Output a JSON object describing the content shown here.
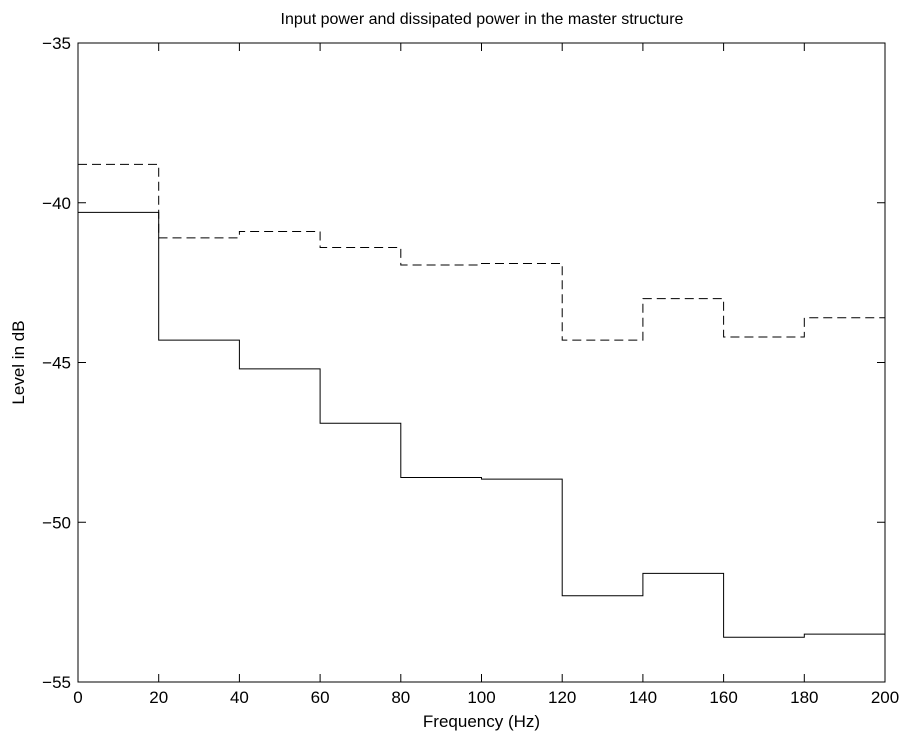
{
  "chart_data": {
    "type": "line",
    "title": "Input power and dissipated power in the master structure",
    "xlabel": "Frequency (Hz)",
    "ylabel": "Level in dB",
    "xlim": [
      0,
      200
    ],
    "ylim": [
      -55,
      -35
    ],
    "xticks": [
      0,
      20,
      40,
      60,
      80,
      100,
      120,
      140,
      160,
      180,
      200
    ],
    "yticks": [
      -35,
      -40,
      -45,
      -50,
      -55
    ],
    "xtick_labels": [
      "0",
      "20",
      "40",
      "60",
      "80",
      "100",
      "120",
      "140",
      "160",
      "180",
      "200"
    ],
    "ytick_labels": [
      "−35",
      "−40",
      "−45",
      "−50",
      "−55"
    ],
    "grid": false,
    "legend": null,
    "series": [
      {
        "style": "dashed",
        "color": "#000000",
        "x": [
          0,
          20,
          40,
          60,
          80,
          100,
          120,
          140,
          160,
          180,
          200
        ],
        "y": [
          -38.8,
          -41.1,
          -40.9,
          -41.4,
          -41.95,
          -41.9,
          -44.3,
          -43.0,
          -44.2,
          -43.6,
          -43.6
        ]
      },
      {
        "style": "solid",
        "color": "#000000",
        "x": [
          0,
          20,
          40,
          60,
          80,
          100,
          120,
          140,
          160,
          180,
          200
        ],
        "y": [
          -40.3,
          -44.3,
          -45.2,
          -46.9,
          -48.6,
          -48.65,
          -52.3,
          -51.6,
          -53.6,
          -53.5,
          -53.5
        ]
      }
    ]
  }
}
